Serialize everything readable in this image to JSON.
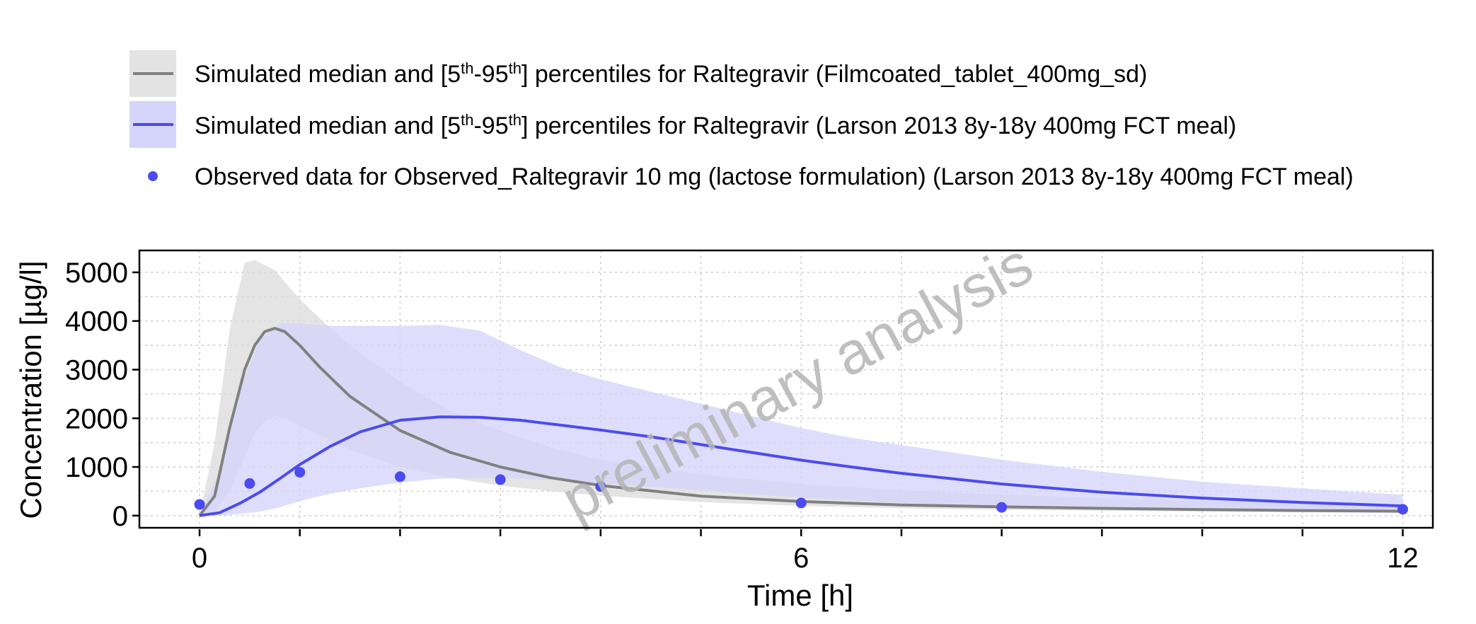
{
  "chart_data": {
    "type": "line",
    "xlabel": "Time [h]",
    "ylabel": "Concentration [µg/l]",
    "xlim": [
      -0.6,
      12.3
    ],
    "ylim": [
      -250,
      5450
    ],
    "x_ticks": [
      0,
      6,
      12
    ],
    "x_minor_ticks": [
      1,
      2,
      3,
      4,
      5,
      7,
      8,
      9,
      10,
      11
    ],
    "y_ticks": [
      0,
      1000,
      2000,
      3000,
      4000,
      5000
    ],
    "grid": true,
    "legend_position": "top",
    "watermark": "preliminary analysis",
    "legend": [
      {
        "type": "line-band",
        "prefix": "Simulated median and [5",
        "sup1": "th",
        "mid": "-95",
        "sup2": "th",
        "suffix": "] percentiles for Raltegravir (Filmcoated_tablet_400mg_sd)",
        "color": "#808080",
        "band_color": "#e0e0e0"
      },
      {
        "type": "line-band",
        "prefix": "Simulated median and [5",
        "sup1": "th",
        "mid": "-95",
        "sup2": "th",
        "suffix": "] percentiles for Raltegravir (Larson 2013 8y-18y 400mg FCT meal)",
        "color": "#4b4bf0",
        "band_color": "#d5d5fb"
      },
      {
        "type": "point",
        "text": "Observed data for Observed_Raltegravir 10 mg (lactose formulation) (Larson 2013 8y-18y 400mg FCT meal)",
        "color": "#4b4bf0"
      }
    ],
    "series": [
      {
        "name": "Simulated median and [5th-95th] percentiles for Raltegravir (Filmcoated_tablet_400mg_sd)",
        "color": "#808080",
        "band_color": "#dcdcdc",
        "x": [
          0,
          0.15,
          0.3,
          0.45,
          0.55,
          0.65,
          0.75,
          0.85,
          1.0,
          1.2,
          1.5,
          2.0,
          2.5,
          3.0,
          3.5,
          4.0,
          5.0,
          6.0,
          7.0,
          8.0,
          9.0,
          10.0,
          11.0,
          12.0
        ],
        "median": [
          0,
          400,
          1800,
          3000,
          3500,
          3780,
          3850,
          3780,
          3500,
          3050,
          2450,
          1750,
          1300,
          1000,
          780,
          620,
          400,
          290,
          220,
          180,
          150,
          125,
          105,
          90
        ],
        "upper": [
          0,
          1500,
          3800,
          5200,
          5250,
          5150,
          5050,
          4800,
          4450,
          4050,
          3500,
          2750,
          2150,
          1750,
          1400,
          1150,
          850,
          650,
          520,
          430,
          360,
          300,
          260,
          220
        ],
        "lower": [
          0,
          80,
          500,
          1200,
          1700,
          1950,
          2050,
          2000,
          1850,
          1650,
          1350,
          1000,
          780,
          620,
          500,
          410,
          280,
          200,
          150,
          120,
          100,
          85,
          72,
          62
        ]
      },
      {
        "name": "Simulated median and [5th-95th] percentiles for Raltegravir (Larson 2013 8y-18y 400mg FCT meal)",
        "color": "#4b4bf0",
        "band_color": "#d5d5fb",
        "x": [
          0,
          0.2,
          0.4,
          0.6,
          0.8,
          1.0,
          1.3,
          1.6,
          2.0,
          2.4,
          2.8,
          3.2,
          3.6,
          4.0,
          4.5,
          5.0,
          5.5,
          6.0,
          6.5,
          7.0,
          8.0,
          9.0,
          10.0,
          11.0,
          12.0
        ],
        "median": [
          0,
          60,
          250,
          480,
          760,
          1050,
          1420,
          1720,
          1960,
          2030,
          2020,
          1960,
          1860,
          1760,
          1620,
          1460,
          1300,
          1140,
          1000,
          870,
          650,
          480,
          360,
          270,
          200
        ],
        "upper": [
          0,
          900,
          2600,
          3600,
          3950,
          3950,
          3900,
          3900,
          3900,
          3920,
          3800,
          3400,
          3050,
          2800,
          2550,
          2300,
          2050,
          1800,
          1600,
          1450,
          1150,
          900,
          700,
          560,
          430
        ],
        "lower": [
          0,
          5,
          30,
          80,
          170,
          300,
          450,
          560,
          680,
          760,
          780,
          760,
          720,
          660,
          590,
          520,
          440,
          370,
          310,
          260,
          180,
          130,
          95,
          70,
          55
        ]
      }
    ],
    "observed": {
      "name": "Observed data for Observed_Raltegravir 10 mg (lactose formulation) (Larson 2013 8y-18y 400mg FCT meal)",
      "color": "#4b4bf0",
      "x": [
        0,
        0.5,
        1.0,
        2.0,
        3.0,
        4.0,
        6.0,
        8.0,
        12.0
      ],
      "y": [
        230,
        660,
        890,
        800,
        740,
        600,
        260,
        170,
        130
      ]
    }
  }
}
